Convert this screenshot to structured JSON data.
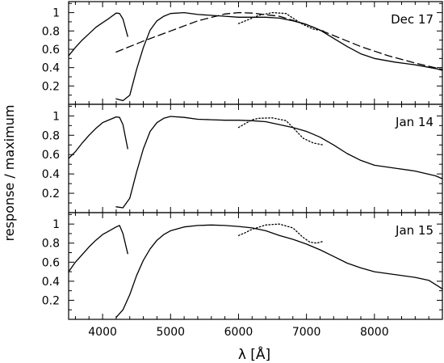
{
  "chart_data": {
    "type": "line",
    "xlabel": "λ [Å]",
    "ylabel": "response / maximum",
    "xlim": [
      3500,
      9000
    ],
    "ylim": [
      0,
      1.12
    ],
    "x_ticks": [
      4000,
      5000,
      6000,
      7000,
      8000
    ],
    "x_minor_step": 200,
    "y_ticks": [
      0.2,
      0.4,
      0.6,
      0.8,
      1.0
    ],
    "y_tick_labels": [
      "0.2",
      "0.4",
      "0.6",
      "0.8",
      "1"
    ],
    "y_minor_step": 0.1,
    "grid": false,
    "panels": [
      {
        "label": "Dec 17",
        "series": [
          {
            "style": "solid",
            "points": [
              [
                3500,
                0.53
              ],
              [
                3600,
                0.62
              ],
              [
                3700,
                0.7
              ],
              [
                3800,
                0.77
              ],
              [
                3900,
                0.84
              ],
              [
                4000,
                0.89
              ],
              [
                4100,
                0.94
              ],
              [
                4200,
                0.995
              ],
              [
                4250,
                0.99
              ],
              [
                4300,
                0.93
              ],
              [
                4370,
                0.74
              ]
            ]
          },
          {
            "style": "solid",
            "points": [
              [
                4200,
                0.06
              ],
              [
                4300,
                0.04
              ],
              [
                4400,
                0.1
              ],
              [
                4500,
                0.38
              ],
              [
                4600,
                0.62
              ],
              [
                4700,
                0.81
              ],
              [
                4800,
                0.91
              ],
              [
                4900,
                0.96
              ],
              [
                5000,
                0.99
              ],
              [
                5200,
                1.0
              ],
              [
                5400,
                0.98
              ],
              [
                5600,
                0.97
              ],
              [
                5800,
                0.96
              ],
              [
                6000,
                0.95
              ],
              [
                6200,
                0.95
              ],
              [
                6400,
                0.95
              ],
              [
                6600,
                0.94
              ],
              [
                6800,
                0.91
              ],
              [
                7000,
                0.87
              ],
              [
                7200,
                0.81
              ],
              [
                7400,
                0.72
              ],
              [
                7600,
                0.63
              ],
              [
                7800,
                0.55
              ],
              [
                8000,
                0.5
              ],
              [
                8300,
                0.46
              ],
              [
                8600,
                0.43
              ],
              [
                8900,
                0.39
              ],
              [
                9000,
                0.37
              ]
            ]
          },
          {
            "style": "dashed",
            "points": [
              [
                4200,
                0.57
              ],
              [
                4600,
                0.69
              ],
              [
                5000,
                0.8
              ],
              [
                5400,
                0.91
              ],
              [
                5800,
                0.985
              ],
              [
                6000,
                1.0
              ],
              [
                6200,
                0.995
              ],
              [
                6600,
                0.96
              ],
              [
                7000,
                0.87
              ],
              [
                7400,
                0.75
              ],
              [
                7800,
                0.63
              ],
              [
                8200,
                0.53
              ],
              [
                8600,
                0.45
              ],
              [
                9000,
                0.38
              ]
            ]
          },
          {
            "style": "dotted",
            "points": [
              [
                6000,
                0.88
              ],
              [
                6100,
                0.91
              ],
              [
                6300,
                0.97
              ],
              [
                6500,
                1.0
              ],
              [
                6700,
                0.99
              ],
              [
                6800,
                0.94
              ],
              [
                6950,
                0.87
              ],
              [
                7100,
                0.82
              ],
              [
                7250,
                0.8
              ]
            ]
          }
        ]
      },
      {
        "label": "Jan 14",
        "series": [
          {
            "style": "solid",
            "points": [
              [
                3500,
                0.56
              ],
              [
                3600,
                0.63
              ],
              [
                3700,
                0.72
              ],
              [
                3800,
                0.8
              ],
              [
                3900,
                0.87
              ],
              [
                4000,
                0.93
              ],
              [
                4100,
                0.96
              ],
              [
                4200,
                0.99
              ],
              [
                4250,
                0.985
              ],
              [
                4300,
                0.91
              ],
              [
                4370,
                0.66
              ]
            ]
          },
          {
            "style": "solid",
            "points": [
              [
                4200,
                0.06
              ],
              [
                4300,
                0.05
              ],
              [
                4400,
                0.15
              ],
              [
                4500,
                0.42
              ],
              [
                4600,
                0.66
              ],
              [
                4700,
                0.84
              ],
              [
                4800,
                0.93
              ],
              [
                4900,
                0.975
              ],
              [
                5000,
                0.995
              ],
              [
                5200,
                0.985
              ],
              [
                5400,
                0.965
              ],
              [
                5600,
                0.96
              ],
              [
                5800,
                0.955
              ],
              [
                6000,
                0.955
              ],
              [
                6200,
                0.95
              ],
              [
                6400,
                0.94
              ],
              [
                6600,
                0.91
              ],
              [
                6800,
                0.88
              ],
              [
                7000,
                0.84
              ],
              [
                7200,
                0.78
              ],
              [
                7400,
                0.7
              ],
              [
                7600,
                0.61
              ],
              [
                7800,
                0.54
              ],
              [
                8000,
                0.49
              ],
              [
                8300,
                0.46
              ],
              [
                8600,
                0.43
              ],
              [
                8900,
                0.38
              ],
              [
                9000,
                0.35
              ]
            ]
          },
          {
            "style": "dotted",
            "points": [
              [
                6000,
                0.88
              ],
              [
                6100,
                0.92
              ],
              [
                6200,
                0.96
              ],
              [
                6300,
                0.975
              ],
              [
                6500,
                0.98
              ],
              [
                6700,
                0.95
              ],
              [
                6800,
                0.88
              ],
              [
                6950,
                0.77
              ],
              [
                7100,
                0.72
              ],
              [
                7250,
                0.7
              ]
            ]
          }
        ]
      },
      {
        "label": "Jan 15",
        "series": [
          {
            "style": "solid",
            "points": [
              [
                3500,
                0.5
              ],
              [
                3600,
                0.6
              ],
              [
                3700,
                0.68
              ],
              [
                3800,
                0.76
              ],
              [
                3900,
                0.83
              ],
              [
                4000,
                0.89
              ],
              [
                4100,
                0.93
              ],
              [
                4200,
                0.97
              ],
              [
                4250,
                0.985
              ],
              [
                4300,
                0.9
              ],
              [
                4370,
                0.69
              ]
            ]
          },
          {
            "style": "solid",
            "points": [
              [
                4200,
                0.02
              ],
              [
                4300,
                0.1
              ],
              [
                4400,
                0.26
              ],
              [
                4500,
                0.46
              ],
              [
                4600,
                0.62
              ],
              [
                4700,
                0.74
              ],
              [
                4800,
                0.83
              ],
              [
                4900,
                0.89
              ],
              [
                5000,
                0.93
              ],
              [
                5200,
                0.97
              ],
              [
                5400,
                0.985
              ],
              [
                5600,
                0.99
              ],
              [
                5800,
                0.985
              ],
              [
                6000,
                0.975
              ],
              [
                6200,
                0.96
              ],
              [
                6400,
                0.93
              ],
              [
                6600,
                0.88
              ],
              [
                6800,
                0.84
              ],
              [
                7000,
                0.79
              ],
              [
                7200,
                0.73
              ],
              [
                7400,
                0.66
              ],
              [
                7600,
                0.59
              ],
              [
                7800,
                0.54
              ],
              [
                8000,
                0.5
              ],
              [
                8300,
                0.47
              ],
              [
                8600,
                0.44
              ],
              [
                8800,
                0.41
              ],
              [
                9000,
                0.32
              ]
            ]
          },
          {
            "style": "dotted",
            "points": [
              [
                6000,
                0.88
              ],
              [
                6100,
                0.91
              ],
              [
                6200,
                0.945
              ],
              [
                6400,
                0.99
              ],
              [
                6600,
                1.0
              ],
              [
                6800,
                0.96
              ],
              [
                6950,
                0.86
              ],
              [
                7050,
                0.81
              ],
              [
                7150,
                0.8
              ],
              [
                7250,
                0.82
              ]
            ]
          }
        ]
      }
    ]
  }
}
